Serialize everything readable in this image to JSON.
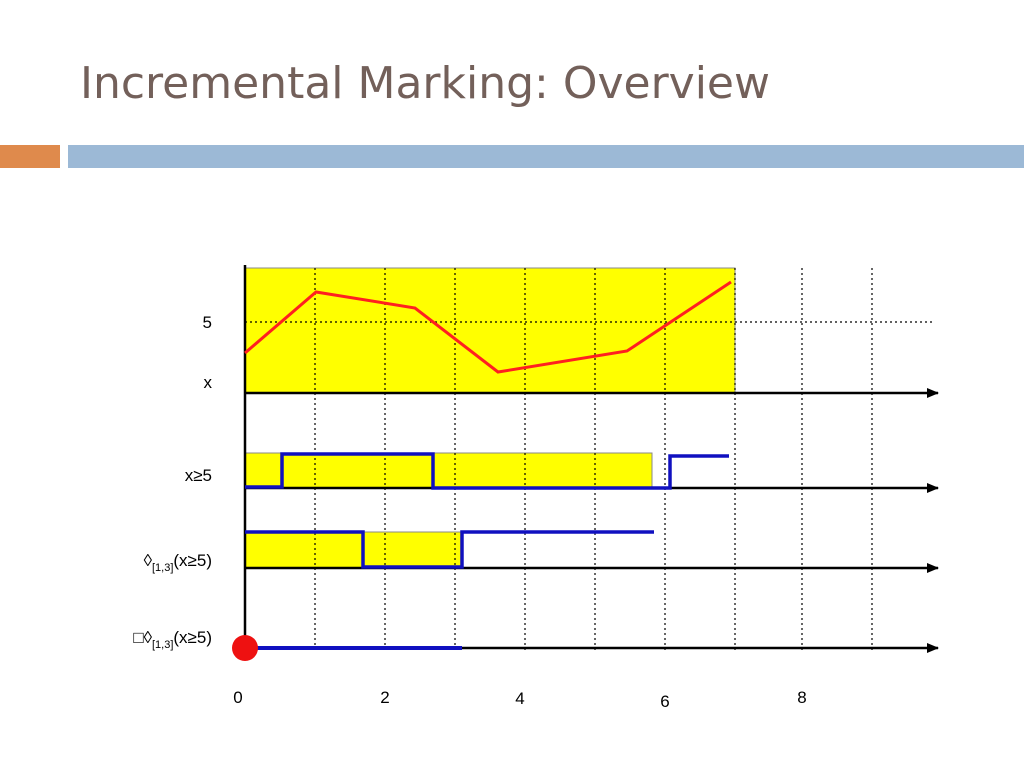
{
  "header": {
    "title": "Incremental Marking: Overview"
  },
  "diagram": {
    "axis_labels": {
      "five": "5",
      "x": "x"
    },
    "rows": [
      {
        "label": "x≥5"
      },
      {
        "label": {
          "prefix": "◊",
          "sub": "[1,3]",
          "suffix": "(x≥5)"
        }
      },
      {
        "label": {
          "prefix": "□◊",
          "sub": "[1,3]",
          "suffix": "(x≥5)"
        }
      }
    ],
    "time_labels": [
      "0",
      "2",
      "4",
      "6",
      "8"
    ]
  }
}
